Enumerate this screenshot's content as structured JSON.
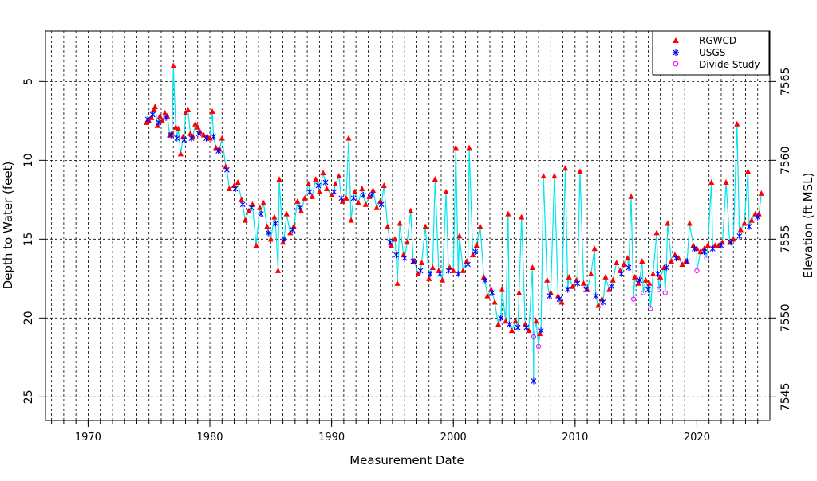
{
  "chart_data": {
    "type": "scatter",
    "xlabel": "Measurement Date",
    "ylabel_left": "Depth to Water (feet)",
    "ylabel_right": "Elevation (ft MSL)",
    "xlim": [
      1966.5,
      2026
    ],
    "ylim_depth": [
      26.5,
      1.8
    ],
    "x_ticks": [
      1970,
      1980,
      1990,
      2000,
      2010,
      2020
    ],
    "x_tick_labels": [
      "1970",
      "1980",
      "1990",
      "2000",
      "2010",
      "2020"
    ],
    "y_ticks": [
      5,
      10,
      15,
      20,
      25
    ],
    "y_tick_labels": [
      "5",
      "10",
      "15",
      "20",
      "25"
    ],
    "y2_ticks": [
      7545,
      7550,
      7555,
      7560,
      7565
    ],
    "y2_tick_labels": [
      "7545",
      "7550",
      "7555",
      "7560",
      "7565"
    ],
    "grid": true,
    "legend_position": "top-right",
    "legend": [
      {
        "label": "RGWCD",
        "marker": "triangle",
        "color": "#ff0000"
      },
      {
        "label": "USGS",
        "marker": "asterisk",
        "color": "#0000ff"
      },
      {
        "label": "Divide Study",
        "marker": "circle",
        "color": "#ff00ff"
      }
    ],
    "line_color": "#00e5ee",
    "series": [
      {
        "name": "RGWCD",
        "points": [
          [
            1974.8,
            7.6
          ],
          [
            1975.0,
            7.5
          ],
          [
            1975.2,
            7.3
          ],
          [
            1975.4,
            6.8
          ],
          [
            1975.5,
            6.6
          ],
          [
            1975.7,
            7.8
          ],
          [
            1975.9,
            7.2
          ],
          [
            1976.1,
            7.5
          ],
          [
            1976.3,
            7.0
          ],
          [
            1976.5,
            7.2
          ],
          [
            1976.7,
            8.4
          ],
          [
            1976.9,
            8.3
          ],
          [
            1977.0,
            4.0
          ],
          [
            1977.2,
            7.9
          ],
          [
            1977.4,
            8.0
          ],
          [
            1977.6,
            9.6
          ],
          [
            1977.8,
            8.5
          ],
          [
            1978.0,
            7.0
          ],
          [
            1978.2,
            6.8
          ],
          [
            1978.4,
            8.3
          ],
          [
            1978.6,
            8.5
          ],
          [
            1978.8,
            7.7
          ],
          [
            1979.0,
            7.9
          ],
          [
            1979.2,
            8.2
          ],
          [
            1979.5,
            8.4
          ],
          [
            1979.8,
            8.5
          ],
          [
            1980.0,
            8.6
          ],
          [
            1980.2,
            6.9
          ],
          [
            1980.5,
            9.2
          ],
          [
            1980.8,
            9.3
          ],
          [
            1981.0,
            8.6
          ],
          [
            1981.3,
            10.4
          ],
          [
            1981.6,
            11.8
          ],
          [
            1982.0,
            11.6
          ],
          [
            1982.3,
            11.4
          ],
          [
            1982.6,
            12.5
          ],
          [
            1982.9,
            13.8
          ],
          [
            1983.2,
            13.2
          ],
          [
            1983.5,
            12.8
          ],
          [
            1983.8,
            15.4
          ],
          [
            1984.1,
            13.0
          ],
          [
            1984.4,
            12.7
          ],
          [
            1984.7,
            14.2
          ],
          [
            1985.0,
            15.0
          ],
          [
            1985.3,
            13.6
          ],
          [
            1985.6,
            17.0
          ],
          [
            1985.7,
            11.2
          ],
          [
            1986.0,
            15.2
          ],
          [
            1986.3,
            13.4
          ],
          [
            1986.6,
            14.6
          ],
          [
            1986.9,
            14.2
          ],
          [
            1987.2,
            12.6
          ],
          [
            1987.5,
            13.2
          ],
          [
            1987.8,
            12.4
          ],
          [
            1988.1,
            11.5
          ],
          [
            1988.4,
            12.3
          ],
          [
            1988.7,
            11.2
          ],
          [
            1989.0,
            12.0
          ],
          [
            1989.3,
            10.8
          ],
          [
            1989.6,
            11.8
          ],
          [
            1990.0,
            12.2
          ],
          [
            1990.3,
            11.5
          ],
          [
            1990.6,
            11.0
          ],
          [
            1990.9,
            12.6
          ],
          [
            1991.2,
            12.4
          ],
          [
            1991.4,
            8.6
          ],
          [
            1991.6,
            13.8
          ],
          [
            1991.9,
            12.0
          ],
          [
            1992.2,
            12.7
          ],
          [
            1992.5,
            11.8
          ],
          [
            1992.8,
            12.8
          ],
          [
            1993.1,
            12.3
          ],
          [
            1993.4,
            11.9
          ],
          [
            1993.7,
            13.0
          ],
          [
            1994.0,
            12.6
          ],
          [
            1994.3,
            11.6
          ],
          [
            1994.6,
            14.2
          ],
          [
            1994.9,
            15.4
          ],
          [
            1995.2,
            15.0
          ],
          [
            1995.4,
            17.8
          ],
          [
            1995.6,
            14.0
          ],
          [
            1995.9,
            16.0
          ],
          [
            1996.2,
            15.2
          ],
          [
            1996.5,
            13.2
          ],
          [
            1996.8,
            16.4
          ],
          [
            1997.1,
            17.2
          ],
          [
            1997.4,
            16.5
          ],
          [
            1997.7,
            14.2
          ],
          [
            1998.0,
            17.5
          ],
          [
            1998.3,
            16.8
          ],
          [
            1998.5,
            11.2
          ],
          [
            1998.8,
            17.0
          ],
          [
            1999.1,
            17.6
          ],
          [
            1999.4,
            12.0
          ],
          [
            1999.7,
            16.8
          ],
          [
            2000.0,
            17.0
          ],
          [
            2000.2,
            9.2
          ],
          [
            2000.5,
            14.8
          ],
          [
            2000.8,
            17.0
          ],
          [
            2001.1,
            16.4
          ],
          [
            2001.3,
            9.2
          ],
          [
            2001.6,
            16.0
          ],
          [
            2001.9,
            15.4
          ],
          [
            2002.2,
            14.2
          ],
          [
            2002.5,
            17.4
          ],
          [
            2002.8,
            18.6
          ],
          [
            2003.1,
            18.2
          ],
          [
            2003.4,
            19.0
          ],
          [
            2003.7,
            20.4
          ],
          [
            2004.0,
            18.2
          ],
          [
            2004.3,
            20.2
          ],
          [
            2004.5,
            13.4
          ],
          [
            2004.8,
            20.8
          ],
          [
            2005.1,
            20.2
          ],
          [
            2005.4,
            18.4
          ],
          [
            2005.6,
            13.6
          ],
          [
            2005.9,
            20.4
          ],
          [
            2006.2,
            20.8
          ],
          [
            2006.5,
            16.8
          ],
          [
            2006.8,
            20.2
          ],
          [
            2007.1,
            21.0
          ],
          [
            2007.4,
            11.0
          ],
          [
            2007.7,
            17.6
          ],
          [
            2008.0,
            18.4
          ],
          [
            2008.3,
            11.0
          ],
          [
            2008.6,
            18.6
          ],
          [
            2008.9,
            19.0
          ],
          [
            2009.2,
            10.5
          ],
          [
            2009.5,
            17.4
          ],
          [
            2009.8,
            18.0
          ],
          [
            2010.1,
            17.6
          ],
          [
            2010.4,
            10.7
          ],
          [
            2010.7,
            17.8
          ],
          [
            2011.0,
            18.2
          ],
          [
            2011.3,
            17.2
          ],
          [
            2011.6,
            15.6
          ],
          [
            2011.9,
            19.2
          ],
          [
            2012.2,
            18.8
          ],
          [
            2012.5,
            17.4
          ],
          [
            2012.8,
            18.2
          ],
          [
            2013.1,
            17.6
          ],
          [
            2013.4,
            16.5
          ],
          [
            2013.7,
            17.0
          ],
          [
            2014.0,
            16.6
          ],
          [
            2014.3,
            16.2
          ],
          [
            2014.6,
            12.3
          ],
          [
            2014.9,
            17.4
          ],
          [
            2015.2,
            17.8
          ],
          [
            2015.5,
            16.4
          ],
          [
            2015.8,
            17.6
          ],
          [
            2016.1,
            17.8
          ],
          [
            2016.4,
            17.2
          ],
          [
            2016.7,
            14.6
          ],
          [
            2017.0,
            17.4
          ],
          [
            2017.3,
            16.8
          ],
          [
            2017.6,
            14.0
          ],
          [
            2017.9,
            16.4
          ],
          [
            2018.2,
            16.0
          ],
          [
            2018.5,
            16.2
          ],
          [
            2018.8,
            16.6
          ],
          [
            2019.1,
            16.4
          ],
          [
            2019.4,
            14.0
          ],
          [
            2019.7,
            15.4
          ],
          [
            2020.0,
            15.6
          ],
          [
            2020.3,
            15.8
          ],
          [
            2020.6,
            15.6
          ],
          [
            2020.9,
            15.4
          ],
          [
            2021.2,
            11.4
          ],
          [
            2021.5,
            15.4
          ],
          [
            2021.8,
            15.4
          ],
          [
            2022.1,
            15.2
          ],
          [
            2022.4,
            11.4
          ],
          [
            2022.7,
            15.2
          ],
          [
            2023.0,
            15.0
          ],
          [
            2023.3,
            7.7
          ],
          [
            2023.6,
            14.4
          ],
          [
            2023.9,
            14.0
          ],
          [
            2024.2,
            10.7
          ],
          [
            2024.5,
            13.8
          ],
          [
            2024.8,
            13.4
          ],
          [
            2025.1,
            13.4
          ],
          [
            2025.3,
            12.1
          ]
        ]
      },
      {
        "name": "USGS",
        "points": [
          [
            1974.9,
            7.4
          ],
          [
            1975.3,
            7.1
          ],
          [
            1975.8,
            7.6
          ],
          [
            1976.4,
            7.3
          ],
          [
            1976.8,
            8.4
          ],
          [
            1977.3,
            8.6
          ],
          [
            1977.9,
            8.7
          ],
          [
            1978.5,
            8.6
          ],
          [
            1979.1,
            8.3
          ],
          [
            1979.7,
            8.6
          ],
          [
            1980.3,
            8.5
          ],
          [
            1980.7,
            9.4
          ],
          [
            1981.4,
            10.6
          ],
          [
            1982.1,
            11.8
          ],
          [
            1982.7,
            12.8
          ],
          [
            1983.4,
            13.0
          ],
          [
            1984.2,
            13.4
          ],
          [
            1984.8,
            14.6
          ],
          [
            1985.4,
            14.0
          ],
          [
            1986.1,
            15.0
          ],
          [
            1986.8,
            14.4
          ],
          [
            1987.4,
            13.0
          ],
          [
            1988.2,
            12.0
          ],
          [
            1988.9,
            11.6
          ],
          [
            1989.5,
            11.4
          ],
          [
            1990.2,
            12.0
          ],
          [
            1990.8,
            12.4
          ],
          [
            1991.8,
            12.4
          ],
          [
            1992.6,
            12.2
          ],
          [
            1993.3,
            12.2
          ],
          [
            1994.1,
            12.8
          ],
          [
            1994.8,
            15.2
          ],
          [
            1995.3,
            16.0
          ],
          [
            1996.0,
            16.2
          ],
          [
            1996.7,
            16.4
          ],
          [
            1997.3,
            17.0
          ],
          [
            1998.1,
            17.2
          ],
          [
            1998.9,
            17.2
          ],
          [
            1999.6,
            17.0
          ],
          [
            2000.4,
            17.2
          ],
          [
            2001.2,
            16.6
          ],
          [
            2001.8,
            15.8
          ],
          [
            2002.6,
            17.6
          ],
          [
            2003.2,
            18.4
          ],
          [
            2003.9,
            20.0
          ],
          [
            2004.6,
            20.4
          ],
          [
            2005.3,
            20.6
          ],
          [
            2006.0,
            20.6
          ],
          [
            2006.6,
            24.0
          ],
          [
            2007.2,
            20.8
          ],
          [
            2007.9,
            18.6
          ],
          [
            2008.7,
            18.8
          ],
          [
            2009.4,
            18.2
          ],
          [
            2010.2,
            17.8
          ],
          [
            2010.9,
            18.2
          ],
          [
            2011.7,
            18.6
          ],
          [
            2012.3,
            19.0
          ],
          [
            2013.0,
            18.0
          ],
          [
            2013.8,
            17.2
          ],
          [
            2014.4,
            16.8
          ],
          [
            2015.3,
            17.6
          ],
          [
            2016.0,
            18.2
          ],
          [
            2016.8,
            17.2
          ],
          [
            2017.5,
            16.8
          ],
          [
            2018.3,
            16.2
          ],
          [
            2019.2,
            16.4
          ],
          [
            2019.8,
            15.6
          ],
          [
            2020.6,
            15.8
          ],
          [
            2021.3,
            15.6
          ],
          [
            2022.0,
            15.4
          ],
          [
            2022.8,
            15.2
          ],
          [
            2023.5,
            14.8
          ],
          [
            2024.3,
            14.2
          ],
          [
            2025.0,
            13.6
          ]
        ]
      },
      {
        "name": "Divide Study",
        "points": [
          [
            2006.6,
            21.2
          ],
          [
            2007.0,
            21.8
          ],
          [
            2014.8,
            18.8
          ],
          [
            2015.6,
            18.4
          ],
          [
            2016.2,
            19.4
          ],
          [
            2016.9,
            18.2
          ],
          [
            2017.4,
            18.4
          ],
          [
            2020.0,
            17.0
          ],
          [
            2020.8,
            16.2
          ]
        ]
      }
    ]
  }
}
